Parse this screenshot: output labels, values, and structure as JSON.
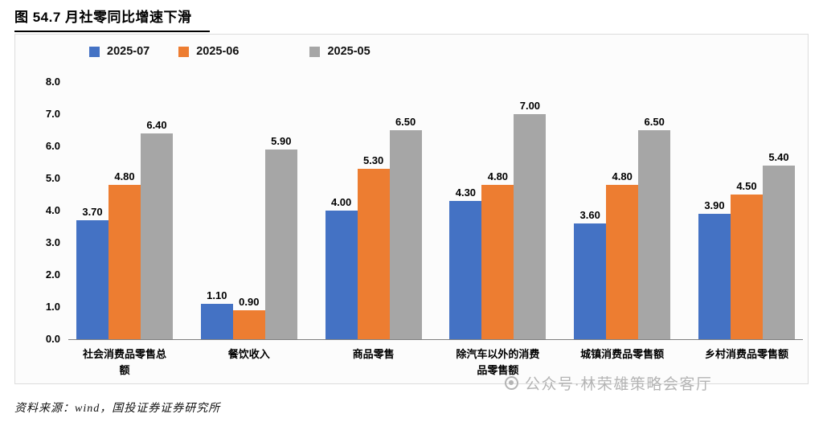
{
  "header": {
    "title": "图 54.7 月社零同比增速下滑"
  },
  "chart_data": {
    "type": "bar",
    "title": "图 54.7 月社零同比增速下滑",
    "categories": [
      "社会消费品零售总额",
      "餐饮收入",
      "商品零售",
      "除汽车以外的消费品零售额",
      "城镇消费品零售额",
      "乡村消费品零售额"
    ],
    "series": [
      {
        "name": "2025-07",
        "color": "#4472C4",
        "values": [
          3.7,
          1.1,
          4.0,
          4.3,
          3.6,
          3.9
        ]
      },
      {
        "name": "2025-06",
        "color": "#ED7D31",
        "values": [
          4.8,
          0.9,
          5.3,
          4.8,
          4.8,
          4.5
        ]
      },
      {
        "name": "2025-05",
        "color": "#A6A6A6",
        "values": [
          6.4,
          5.9,
          6.5,
          7.0,
          6.5,
          5.4
        ]
      }
    ],
    "xlabel": "",
    "ylabel": "",
    "ylim": [
      0,
      8
    ],
    "ytick_step": 1,
    "yticks": [
      8.0,
      7.0,
      6.0,
      5.0,
      4.0,
      3.0,
      2.0,
      1.0,
      0.0
    ],
    "grid": false,
    "legend_position": "top",
    "value_labels": true
  },
  "watermark": {
    "text": "公众号·林荣雄策略会客厅"
  },
  "footer": {
    "source": "资料来源：wind，国投证券证券研究所"
  }
}
